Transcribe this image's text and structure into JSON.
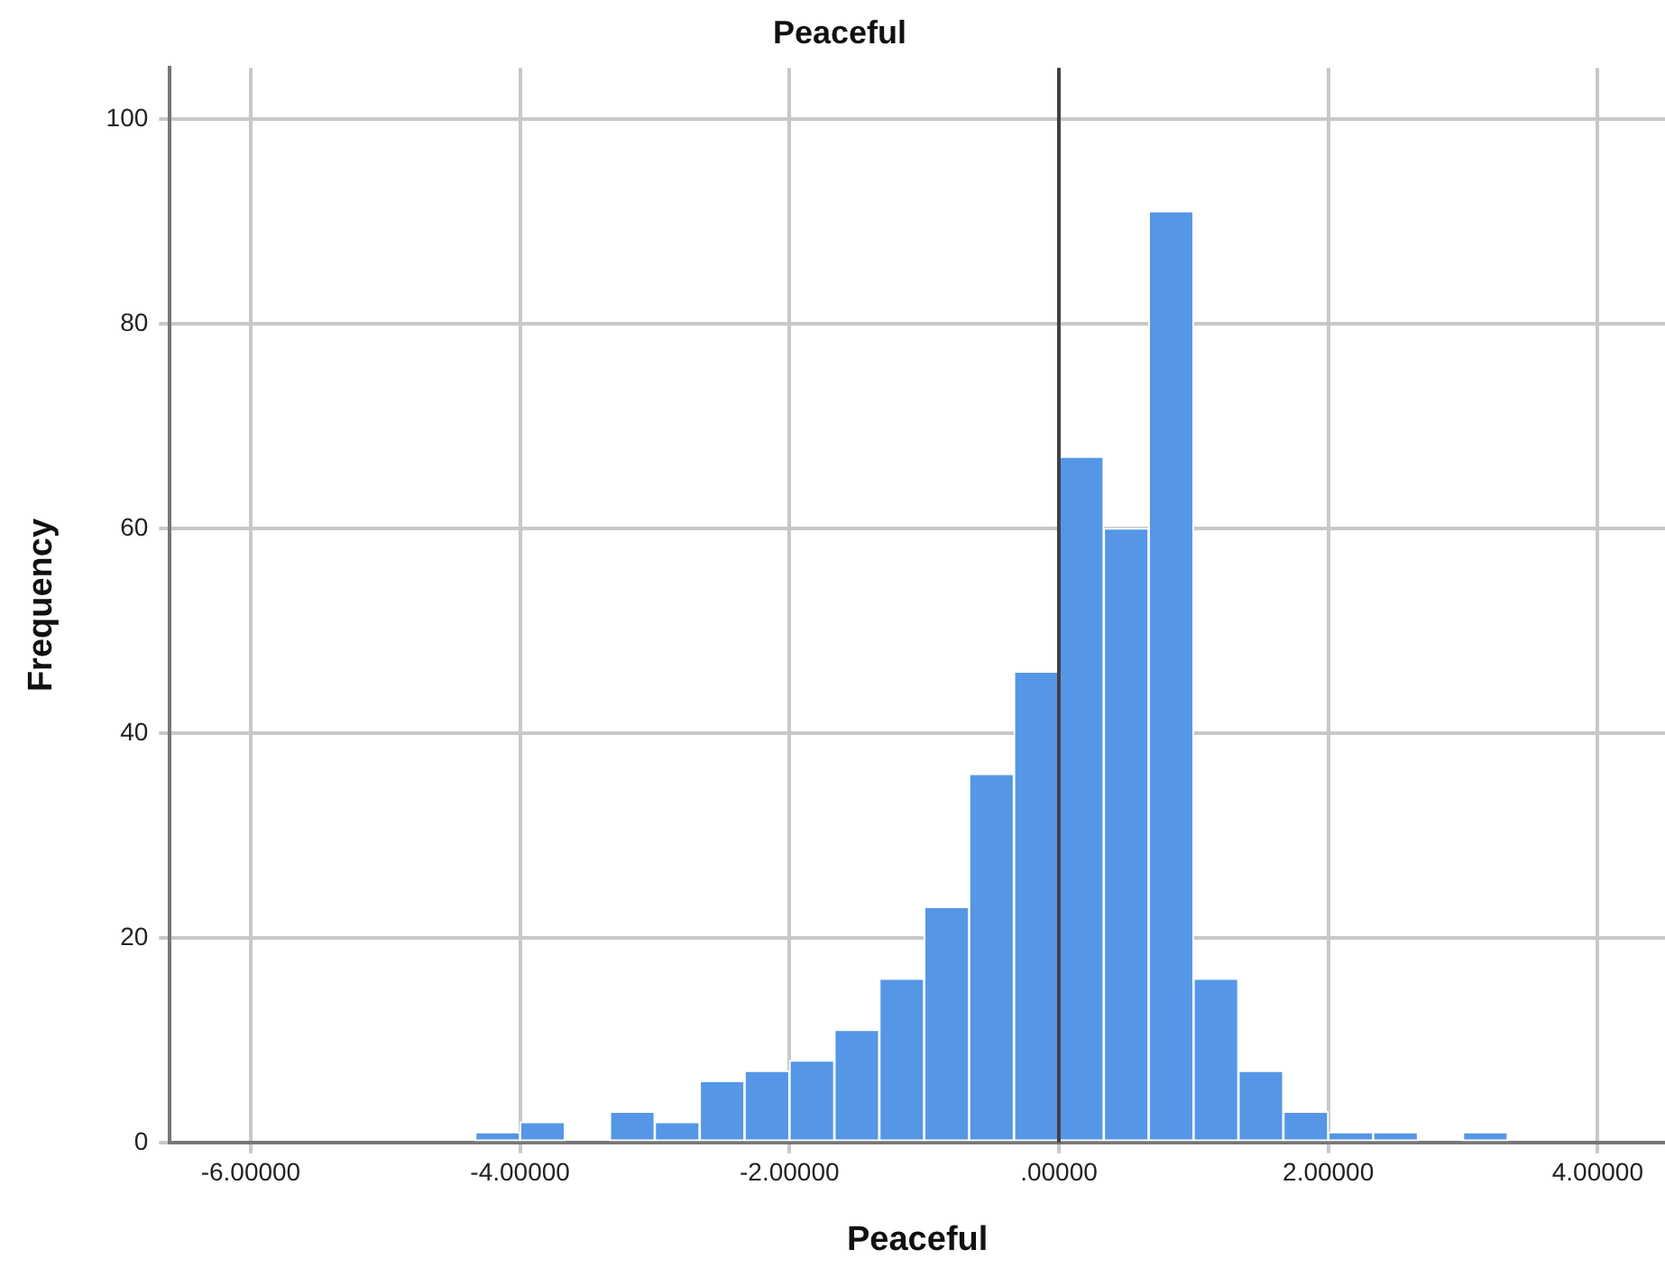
{
  "chart_data": {
    "type": "histogram",
    "title": "Peaceful",
    "xlabel": "Peaceful",
    "ylabel": "Frequency",
    "bins": [
      -4.333,
      -4.0,
      -3.667,
      -3.333,
      -3.0,
      -2.667,
      -2.333,
      -2.0,
      -1.667,
      -1.333,
      -1.0,
      -0.667,
      -0.333,
      0.0,
      0.333,
      0.667,
      1.0,
      1.333,
      1.667,
      2.0,
      2.333,
      2.667,
      3.0,
      3.333
    ],
    "values": [
      1,
      2,
      0,
      3,
      2,
      6,
      7,
      8,
      11,
      16,
      23,
      36,
      46,
      67,
      60,
      91,
      16,
      7,
      3,
      1,
      1,
      0,
      1
    ],
    "color": "#5596e6",
    "xlim": [
      -6.6,
      4.5
    ],
    "xticks": [
      {
        "value": -6,
        "label": "-6.00000"
      },
      {
        "value": -4,
        "label": "-4.00000"
      },
      {
        "value": -2,
        "label": "-2.00000"
      },
      {
        "value": 0,
        "label": ".00000"
      },
      {
        "value": 2,
        "label": "2.00000"
      },
      {
        "value": 4,
        "label": "4.00000"
      }
    ],
    "ylim": [
      0,
      105
    ],
    "yticks": [
      0,
      20,
      40,
      60,
      80,
      100
    ],
    "grid": true,
    "ref_lines": [
      {
        "axis": "x",
        "value": 0,
        "color": "#404040"
      }
    ]
  }
}
